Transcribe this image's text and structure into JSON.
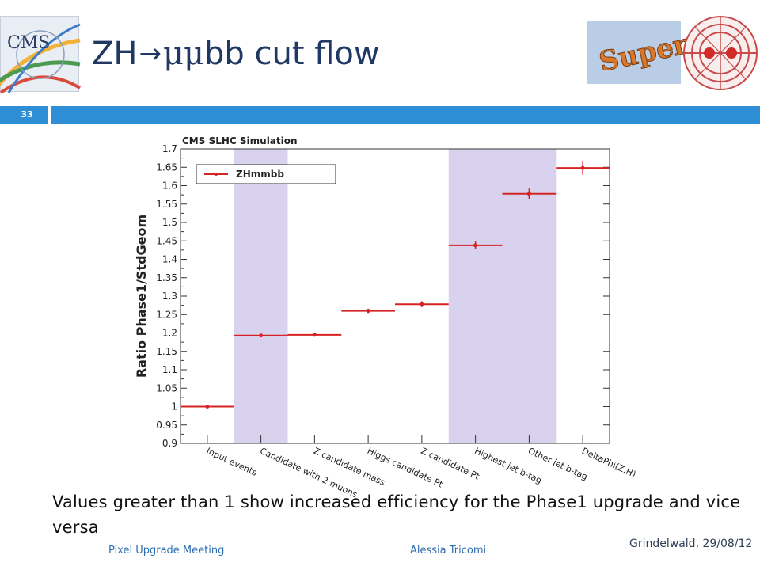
{
  "slide": {
    "number": "33",
    "title_prefix": "ZH",
    "title_arrow": "→",
    "title_mumu": "μμ",
    "title_suffix": "bb cut flow",
    "caption": "Values greater than 1 show increased efficiency for the Phase1 upgrade and vice versa",
    "footer_left": "Pixel Upgrade Meeting",
    "footer_center": "Alessia Tricomi",
    "footer_right": "Grindelwald, 29/08/12"
  },
  "logos": {
    "cms_text": "CMS",
    "super_text": "Super"
  },
  "colors": {
    "bar_blue": "#2e8fd6",
    "title_navy": "#1f3864",
    "band_lavender": "#d9d2ee",
    "series_red": "#d62424"
  },
  "chart_data": {
    "type": "scatter",
    "title": "CMS SLHC Simulation",
    "xlabel": "",
    "ylabel": "Ratio Phase1/StdGeom",
    "ylim": [
      0.9,
      1.7
    ],
    "yticks": [
      "0.9",
      "0.95",
      "1",
      "1.05",
      "1.1",
      "1.15",
      "1.2",
      "1.25",
      "1.3",
      "1.35",
      "1.4",
      "1.45",
      "1.5",
      "1.55",
      "1.6",
      "1.65",
      "1.7"
    ],
    "categories": [
      "Input events",
      "Candidate with 2 muons",
      "Z candidate mass",
      "Higgs candidate Pt",
      "Z candidate Pt",
      "Highest jet b-tag",
      "Other jet b-tag",
      "DeltaPhi(Z,H)"
    ],
    "shaded_bins": [
      1,
      5,
      6
    ],
    "legend_position": "top-left",
    "series": [
      {
        "name": "ZHmmbb",
        "values": [
          1.0,
          1.193,
          1.195,
          1.26,
          1.278,
          1.438,
          1.578,
          1.648
        ],
        "errors": [
          0.0,
          0.004,
          0.004,
          0.006,
          0.008,
          0.011,
          0.014,
          0.018
        ]
      }
    ]
  }
}
